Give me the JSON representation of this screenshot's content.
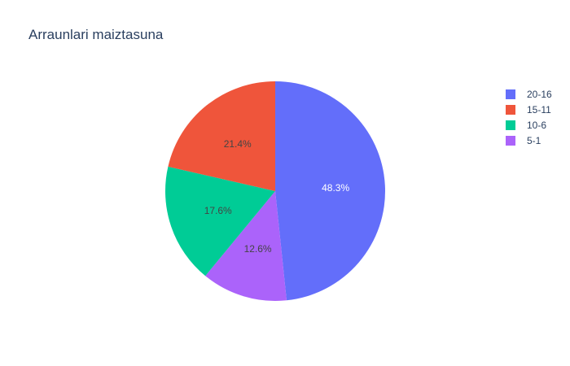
{
  "chart_data": {
    "type": "pie",
    "title": "Arraunlari maiztasuna",
    "categories": [
      "20-16",
      "15-11",
      "10-6",
      "5-1"
    ],
    "values": [
      48.3,
      21.4,
      17.6,
      12.6
    ],
    "value_labels": [
      "48.3%",
      "21.4%",
      "17.6%",
      "12.6%"
    ],
    "slice_order": [
      "20-16",
      "5-1",
      "10-6",
      "15-11"
    ],
    "direction": "clockwise",
    "start": "top",
    "colors": {
      "20-16": "#636efa",
      "15-11": "#ef553b",
      "10-6": "#00cc96",
      "5-1": "#ab63fa"
    },
    "label_colors": {
      "20-16": "#ffffff",
      "15-11": "#444444",
      "10-6": "#444444",
      "5-1": "#444444"
    },
    "legend": {
      "position": "top-right",
      "items": [
        "20-16",
        "15-11",
        "10-6",
        "5-1"
      ]
    }
  }
}
